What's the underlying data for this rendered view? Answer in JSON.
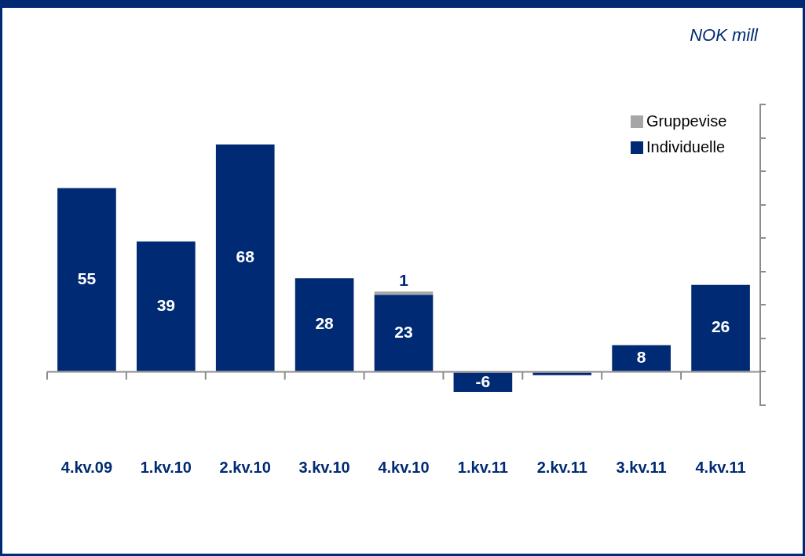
{
  "chart_data": {
    "type": "bar",
    "subtitle": "NOK mill",
    "stacked": true,
    "categories": [
      "4.kv.09",
      "1.kv.10",
      "2.kv.10",
      "3.kv.10",
      "4.kv.10",
      "1.kv.11",
      "2.kv.11",
      "3.kv.11",
      "4.kv.11"
    ],
    "series": [
      {
        "name": "Individuelle",
        "color": "#002a73",
        "values": [
          55,
          39,
          68,
          28,
          23,
          -6,
          -1,
          8,
          26
        ],
        "value_labels": [
          "55",
          "39",
          "68",
          "28",
          "23",
          "-6",
          null,
          "8",
          "26"
        ]
      },
      {
        "name": "Gruppevise",
        "color": "#a6a6a6",
        "values": [
          null,
          null,
          null,
          null,
          1,
          null,
          null,
          null,
          null
        ],
        "value_labels": [
          null,
          null,
          null,
          null,
          "1",
          null,
          null,
          null,
          null
        ]
      }
    ],
    "ylim": [
      -10,
      80
    ],
    "yticks": [
      {
        "value": -10,
        "label": null
      },
      {
        "value": 0,
        "label": null
      },
      {
        "value": 10,
        "label": null
      },
      {
        "value": 20,
        "label": null
      },
      {
        "value": 30,
        "label": null
      },
      {
        "value": 40,
        "label": null
      },
      {
        "value": 50,
        "label": null
      },
      {
        "value": 60,
        "label": null
      },
      {
        "value": 70,
        "label": null
      },
      {
        "value": 80,
        "label": null
      }
    ],
    "tick_labels": "x",
    "grid": false,
    "legend": "top right"
  }
}
